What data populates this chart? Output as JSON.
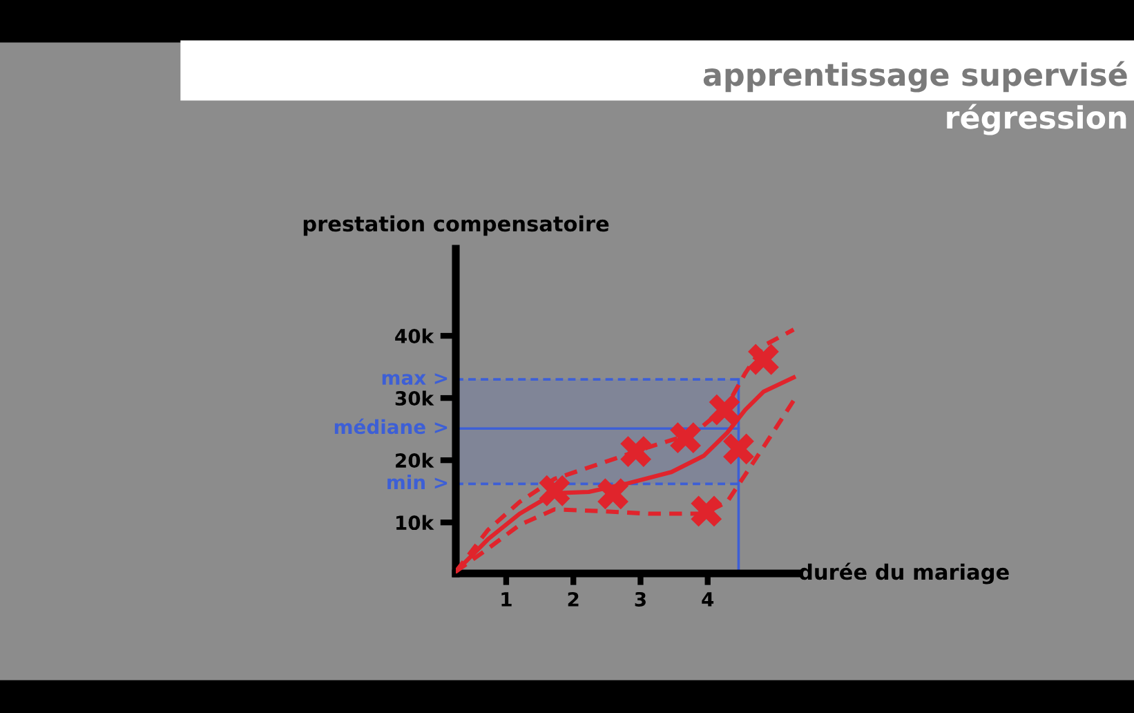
{
  "chart_data": {
    "type": "scatter",
    "title": "apprentissage supervisé",
    "subtitle": "régression",
    "xlabel": "durée du mariage",
    "ylabel": "prestation compensatoire",
    "x": [
      1.72,
      2.59,
      2.93,
      3.67,
      3.98,
      4.25,
      4.46,
      4.83
    ],
    "series": [
      {
        "color": "#e0242c",
        "marker": "cross",
        "values": [
          15100,
          14600,
          21400,
          23600,
          11800,
          28100,
          21800,
          36200
        ]
      },
      {
        "type": "line",
        "color": "#e0242c",
        "line_style": "solid",
        "marker": "none",
        "x": [
          0.25,
          0.73,
          1.2,
          1.72,
          2.23,
          2.78,
          3.46,
          3.94,
          4.29,
          4.56,
          4.83,
          5.28
        ],
        "values": [
          2100,
          7300,
          11400,
          14700,
          14900,
          16200,
          18100,
          20700,
          24400,
          28100,
          31000,
          33300
        ]
      },
      {
        "type": "line",
        "color": "#e0242c",
        "line_style": "dashed",
        "marker": "none",
        "x": [
          0.25,
          0.73,
          1.2,
          1.72,
          2.44,
          3.12,
          3.81,
          4.29,
          4.56,
          4.83,
          5.28
        ],
        "values": [
          2100,
          8800,
          13300,
          17000,
          19600,
          22100,
          24400,
          28800,
          34000,
          38400,
          41000
        ]
      },
      {
        "type": "line",
        "color": "#e0242c",
        "line_style": "dashed",
        "marker": "none",
        "x": [
          0.25,
          0.73,
          1.2,
          1.72,
          2.44,
          3.12,
          3.94,
          4.29,
          4.56,
          4.83,
          5.28
        ],
        "values": [
          2100,
          5800,
          9600,
          12100,
          11800,
          11400,
          11400,
          13300,
          17700,
          22100,
          29600
        ]
      }
    ],
    "xlim": [
      0.25,
      5.35
    ],
    "xticks": [
      1,
      2,
      3,
      4
    ],
    "ylim": [
      1800,
      54000
    ],
    "yticks": [
      {
        "value": 10000,
        "label": "10k"
      },
      {
        "value": 20000,
        "label": "20k"
      },
      {
        "value": 30000,
        "label": "30k"
      },
      {
        "value": 40000,
        "label": "40k"
      }
    ],
    "ref_lines": [
      {
        "axis": "y",
        "value": 33000,
        "label": "max >",
        "color": "#3d5fd6",
        "line_style": "dashed"
      },
      {
        "axis": "y",
        "value": 25100,
        "label": "médiane >",
        "color": "#3d5fd6",
        "line_style": "solid"
      },
      {
        "axis": "y",
        "value": 16200,
        "label": "min >",
        "color": "#3d5fd6",
        "line_style": "dashed"
      },
      {
        "axis": "x",
        "value": 4.46,
        "label": null,
        "color": "#3d5fd6",
        "line_style": "solid"
      }
    ],
    "bands": [
      {
        "axis": "y",
        "from": 16200,
        "to": 33000,
        "label": null,
        "color": "#3d5fd6"
      }
    ],
    "grid": false,
    "legend": false
  }
}
